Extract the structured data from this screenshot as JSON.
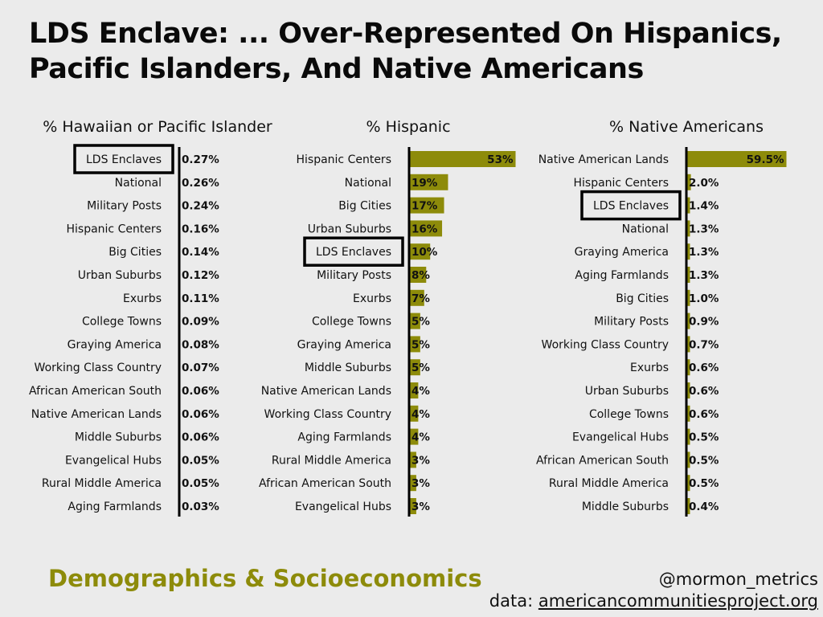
{
  "title": "LDS Enclave: ... Over-Represented On Hispanics, Pacific Islanders, And Native Americans",
  "footer": {
    "topic": "Demographics & Socioeconomics",
    "handle": "@mormon_metrics",
    "source_prefix": "data:",
    "source_url": "americancommunitiesproject.org"
  },
  "colors": {
    "bar": "#8d8b0a",
    "background": "#ebebeb",
    "text": "#111111",
    "highlight_box": "#000000"
  },
  "chart_data": [
    {
      "type": "bar",
      "orientation": "horizontal",
      "title": "% Hawaiian or Pacific Islander",
      "highlight": "LDS Enclaves",
      "max": 0.27,
      "categories": [
        "LDS Enclaves",
        "National",
        "Military Posts",
        "Hispanic Centers",
        "Big Cities",
        "Urban Suburbs",
        "Exurbs",
        "College Towns",
        "Graying America",
        "Working Class Country",
        "African American South",
        "Native American Lands",
        "Middle Suburbs",
        "Evangelical Hubs",
        "Rural Middle America",
        "Aging Farmlands"
      ],
      "values": [
        0.27,
        0.26,
        0.24,
        0.16,
        0.14,
        0.12,
        0.11,
        0.09,
        0.08,
        0.07,
        0.06,
        0.06,
        0.06,
        0.05,
        0.05,
        0.03
      ],
      "labels": [
        "0.27%",
        "0.26%",
        "0.24%",
        "0.16%",
        "0.14%",
        "0.12%",
        "0.11%",
        "0.09%",
        "0.08%",
        "0.07%",
        "0.06%",
        "0.06%",
        "0.06%",
        "0.05%",
        "0.05%",
        "0.03%"
      ],
      "show_bars": false
    },
    {
      "type": "bar",
      "orientation": "horizontal",
      "title": "% Hispanic",
      "highlight": "LDS Enclaves",
      "max": 53,
      "categories": [
        "Hispanic Centers",
        "National",
        "Big Cities",
        "Urban Suburbs",
        "LDS Enclaves",
        "Military Posts",
        "Exurbs",
        "College Towns",
        "Graying America",
        "Middle Suburbs",
        "Native American Lands",
        "Working Class Country",
        "Aging Farmlands",
        "Rural Middle America",
        "African American South",
        "Evangelical Hubs"
      ],
      "values": [
        53,
        19,
        17,
        16,
        10,
        8,
        7,
        5,
        5,
        5,
        4,
        4,
        4,
        3,
        3,
        3
      ],
      "labels": [
        "53%",
        "19%",
        "17%",
        "16%",
        "10%",
        "8%",
        "7%",
        "5%",
        "5%",
        "5%",
        "4%",
        "4%",
        "4%",
        "3%",
        "3%",
        "3%"
      ],
      "show_bars": true
    },
    {
      "type": "bar",
      "orientation": "horizontal",
      "title": "% Native Americans",
      "highlight": "LDS Enclaves",
      "max": 59.5,
      "categories": [
        "Native American Lands",
        "Hispanic Centers",
        "LDS Enclaves",
        "National",
        "Graying America",
        "Aging Farmlands",
        "Big Cities",
        "Military Posts",
        "Working Class Country",
        "Exurbs",
        "Urban Suburbs",
        "College Towns",
        "Evangelical Hubs",
        "African American South",
        "Rural Middle America",
        "Middle Suburbs"
      ],
      "values": [
        59.5,
        2.0,
        1.4,
        1.3,
        1.3,
        1.3,
        1.0,
        0.9,
        0.7,
        0.6,
        0.6,
        0.6,
        0.5,
        0.5,
        0.5,
        0.4
      ],
      "labels": [
        "59.5%",
        "2.0%",
        "1.4%",
        "1.3%",
        "1.3%",
        "1.3%",
        "1.0%",
        "0.9%",
        "0.7%",
        "0.6%",
        "0.6%",
        "0.6%",
        "0.5%",
        "0.5%",
        "0.5%",
        "0.4%"
      ],
      "show_bars": true
    }
  ]
}
